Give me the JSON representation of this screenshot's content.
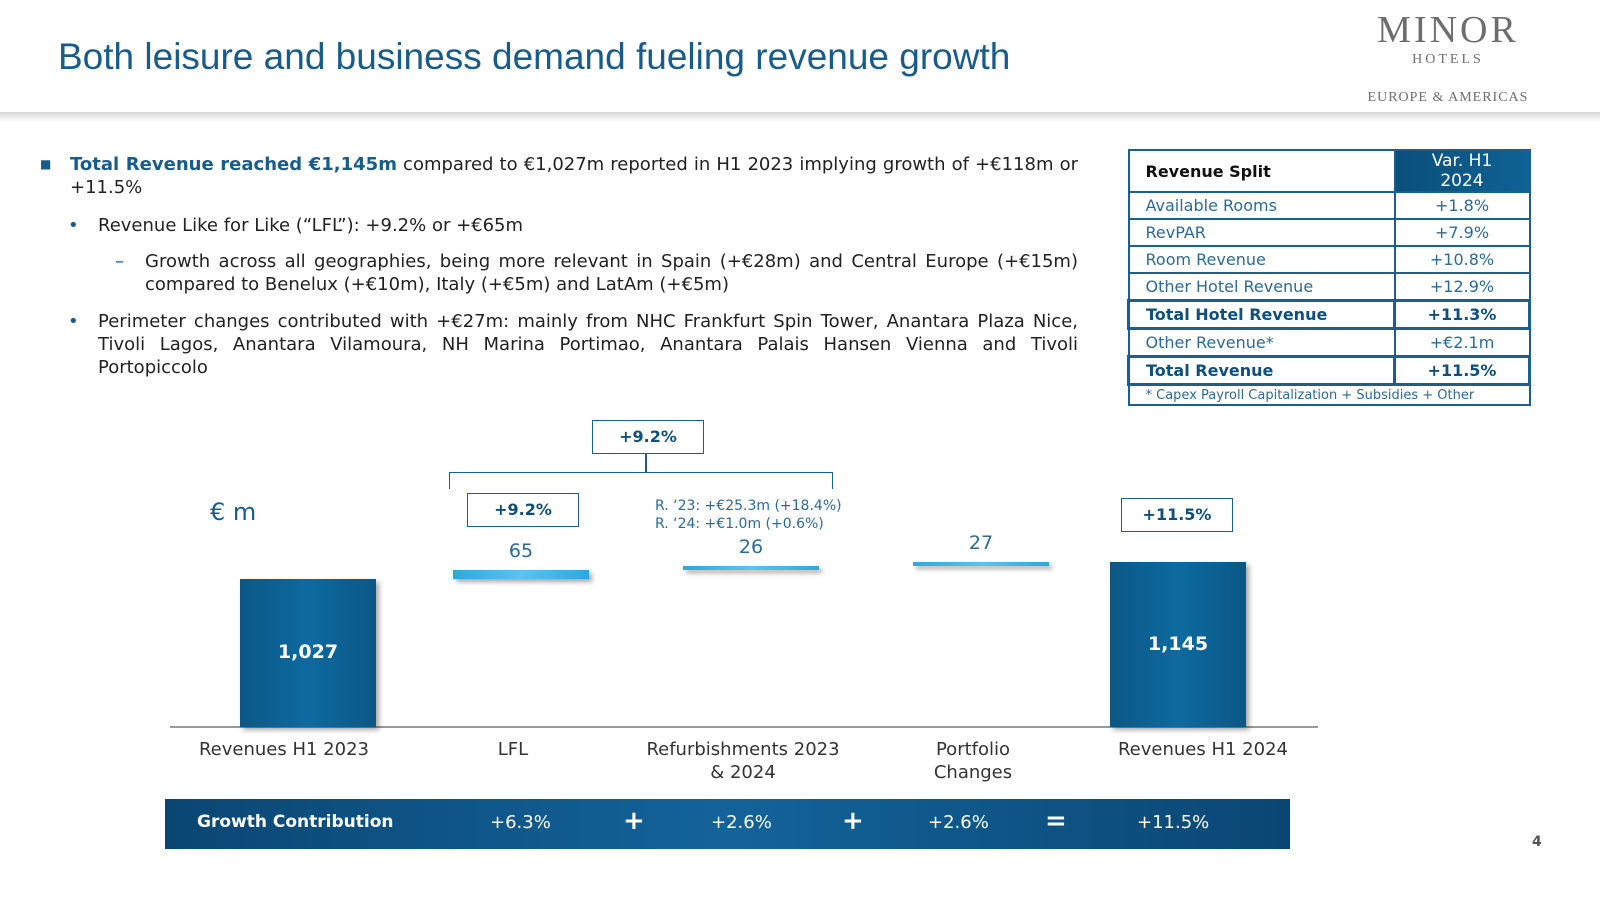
{
  "header": {
    "title": "Both leisure and business demand fueling revenue growth",
    "logo": {
      "name": "MINOR",
      "sub": "HOTELS",
      "region": "EUROPE & AMERICAS"
    }
  },
  "bullets": [
    {
      "bold": "Total Revenue reached €1,145m",
      "text": " compared to €1,027m reported in H1 2023 implying growth of +€118m or +11.5%"
    },
    {
      "text": "Revenue Like for Like (“LFL”): +9.2% or +€65m"
    },
    {
      "text": "Growth across all geographies, being more relevant in Spain (+€28m) and Central Europe (+€15m) compared to Benelux (+€10m), Italy (+€5m) and LatAm (+€5m)"
    },
    {
      "text": "Perimeter changes contributed with +€27m: mainly from NHC Frankfurt Spin Tower, Anantara Plaza Nice, Tivoli Lagos, Anantara Vilamoura, NH Marina Portimao, Anantara Palais Hansen Vienna and Tivoli Portopiccolo"
    }
  ],
  "table": {
    "header": [
      "Revenue Split",
      "Var. H1 2024"
    ],
    "rows": [
      [
        "Available Rooms",
        "+1.8%"
      ],
      [
        "RevPAR",
        "+7.9%"
      ],
      [
        "Room Revenue",
        "+10.8%"
      ],
      [
        "Other Hotel Revenue",
        "+12.9%"
      ],
      [
        "Total Hotel Revenue",
        "+11.3%"
      ],
      [
        "Other Revenue*",
        "+€2.1m"
      ],
      [
        "Total Revenue",
        "+11.5%"
      ]
    ],
    "footnote": "* Capex Payroll Capitalization + Subsidies + Other"
  },
  "chart_data": {
    "type": "waterfall",
    "unit_label": "€ m",
    "categories": [
      "Revenues H1 2023",
      "LFL",
      "Refurbishments 2023 & 2024",
      "Portfolio Changes",
      "Revenues H1 2024"
    ],
    "values": [
      1027,
      65,
      26,
      27,
      1145
    ],
    "value_labels": [
      "1,027",
      "65",
      "26",
      "27",
      "1,145"
    ],
    "total_color": "#0b5785",
    "step_color": "#2ea8da",
    "annotations": {
      "lfl": "+9.2%",
      "lfl_refurb": "+9.2%",
      "total": "+11.5%",
      "refurb_note": [
        "R. ‘23: +€25.3m (+18.4%)",
        "R. ‘24: +€1.0m (+0.6%)"
      ]
    }
  },
  "growth": {
    "label": "Growth Contribution",
    "items": [
      "+6.3%",
      "+2.6%",
      "+2.6%",
      "+11.5%"
    ],
    "operators": [
      "+",
      "+",
      "="
    ]
  },
  "page_number": "4"
}
